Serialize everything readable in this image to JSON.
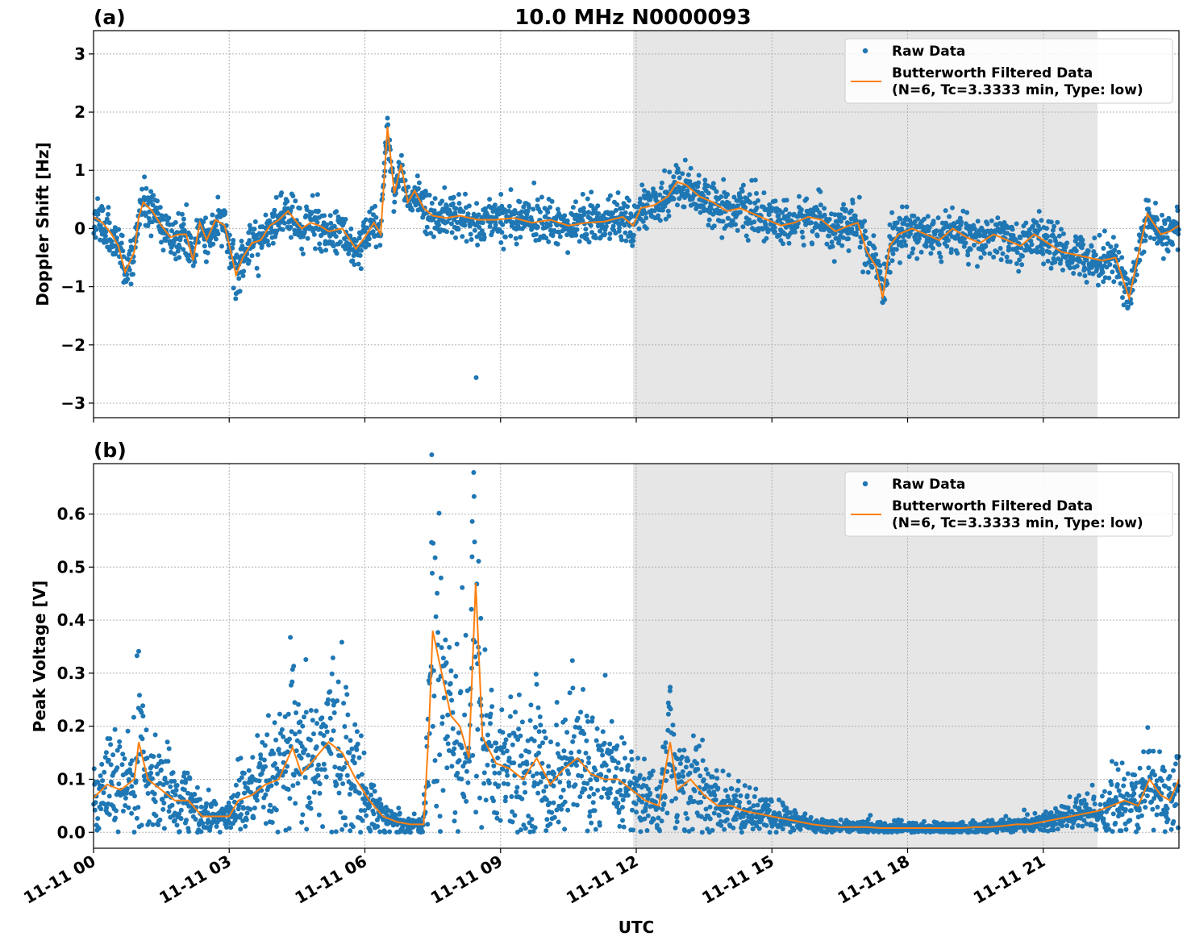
{
  "figure": {
    "title": "10.0 MHz N0000093",
    "xlabel": "UTC",
    "x_ticks": [
      "11-11 00",
      "11-11 03",
      "11-11 06",
      "11-11 09",
      "11-11 12",
      "11-11 15",
      "11-11 18",
      "11-11 21"
    ]
  },
  "colors": {
    "raw": "#1f77b4",
    "filtered": "#ff7f0e",
    "night_shade": "#e6e6e6",
    "grid": "#b0b0b0"
  },
  "legend": {
    "raw_label": "Raw Data",
    "filtered_label_line1": "Butterworth Filtered Data",
    "filtered_label_line2": "(N=6, Tc=3.3333 min, Type: low)",
    "placement": "top-right"
  },
  "chart_data": [
    {
      "type": "scatter",
      "panel": "(a)",
      "ylabel": "Doppler Shift [Hz]",
      "xlim_hours": [
        0,
        24
      ],
      "ylim": [
        -3.25,
        3.4
      ],
      "y_ticks": [
        "3",
        "2",
        "1",
        "0",
        "−1",
        "−2",
        "−3"
      ],
      "y_tick_values": [
        3,
        2,
        1,
        0,
        -1,
        -2,
        -3
      ],
      "grid": true,
      "shaded_region_hours": [
        11.93,
        22.2
      ],
      "filtered_series_hours": [
        0,
        0.2,
        0.4,
        0.55,
        0.7,
        0.9,
        1.0,
        1.1,
        1.3,
        1.5,
        1.7,
        1.9,
        2.05,
        2.2,
        2.35,
        2.5,
        2.7,
        2.9,
        3.05,
        3.15,
        3.3,
        3.5,
        3.7,
        3.9,
        4.1,
        4.3,
        4.6,
        4.8,
        5.0,
        5.2,
        5.5,
        5.8,
        6.0,
        6.2,
        6.35,
        6.5,
        6.65,
        6.8,
        6.95,
        7.1,
        7.3,
        7.5,
        7.8,
        8.1,
        8.5,
        8.9,
        9.3,
        9.7,
        10.1,
        10.5,
        10.9,
        11.3,
        11.7,
        11.93,
        12.1,
        12.4,
        12.7,
        12.9,
        13.1,
        13.4,
        13.7,
        14.0,
        14.3,
        14.6,
        14.9,
        15.2,
        15.5,
        15.8,
        16.1,
        16.4,
        16.7,
        16.9,
        17.1,
        17.3,
        17.45,
        17.6,
        17.8,
        18.1,
        18.4,
        18.7,
        19.0,
        19.3,
        19.6,
        19.9,
        20.2,
        20.5,
        20.8,
        21.1,
        21.4,
        21.7,
        22.0,
        22.3,
        22.6,
        22.9,
        23.1,
        23.3,
        23.6,
        23.8,
        24.0
      ],
      "filtered_series_values": [
        0.2,
        0.1,
        -0.1,
        -0.3,
        -0.75,
        -0.4,
        0.2,
        0.45,
        0.3,
        0.05,
        -0.15,
        -0.1,
        -0.1,
        -0.55,
        0.1,
        -0.2,
        0.15,
        0.05,
        -0.45,
        -0.8,
        -0.5,
        -0.25,
        -0.2,
        0.05,
        0.15,
        0.3,
        0.0,
        0.1,
        0.05,
        -0.05,
        0.0,
        -0.35,
        -0.15,
        0.1,
        -0.1,
        1.75,
        0.6,
        1.1,
        0.45,
        0.65,
        0.35,
        0.22,
        0.18,
        0.22,
        0.15,
        0.15,
        0.18,
        0.1,
        0.15,
        0.05,
        0.1,
        0.12,
        0.2,
        0.05,
        0.35,
        0.4,
        0.55,
        0.8,
        0.75,
        0.55,
        0.45,
        0.3,
        0.35,
        0.25,
        0.15,
        0.05,
        0.1,
        0.2,
        0.15,
        -0.05,
        0.05,
        0.1,
        -0.4,
        -0.65,
        -1.2,
        -0.3,
        -0.1,
        0.0,
        -0.1,
        -0.2,
        0.0,
        -0.15,
        -0.25,
        -0.1,
        -0.2,
        -0.3,
        -0.1,
        -0.25,
        -0.4,
        -0.45,
        -0.5,
        -0.55,
        -0.5,
        -1.2,
        -0.45,
        0.25,
        -0.1,
        -0.05,
        0.05
      ]
    },
    {
      "type": "scatter",
      "panel": "(b)",
      "ylabel": "Peak Voltage [V]",
      "xlim_hours": [
        0,
        24
      ],
      "ylim": [
        -0.03,
        0.695
      ],
      "y_ticks": [
        "0.6",
        "0.5",
        "0.4",
        "0.3",
        "0.2",
        "0.1",
        "0.0"
      ],
      "y_tick_values": [
        0.6,
        0.5,
        0.4,
        0.3,
        0.2,
        0.1,
        0.0
      ],
      "grid": true,
      "shaded_region_hours": [
        11.93,
        22.2
      ],
      "filtered_series_hours": [
        0,
        0.3,
        0.6,
        0.9,
        1.0,
        1.2,
        1.5,
        1.8,
        2.1,
        2.4,
        2.7,
        3.0,
        3.2,
        3.5,
        3.8,
        4.1,
        4.4,
        4.6,
        4.9,
        5.2,
        5.5,
        5.8,
        6.1,
        6.4,
        6.7,
        7.0,
        7.3,
        7.42,
        7.5,
        7.7,
        7.9,
        8.1,
        8.3,
        8.45,
        8.6,
        8.9,
        9.2,
        9.5,
        9.8,
        10.1,
        10.4,
        10.7,
        11.0,
        11.3,
        11.6,
        11.9,
        12.2,
        12.5,
        12.75,
        12.9,
        13.2,
        13.5,
        13.8,
        14.1,
        14.4,
        14.7,
        15.0,
        15.3,
        15.6,
        15.9,
        16.2,
        16.5,
        16.8,
        17.1,
        17.4,
        17.7,
        18.0,
        18.3,
        18.6,
        18.9,
        19.2,
        19.5,
        19.8,
        20.1,
        20.4,
        20.7,
        21.0,
        21.3,
        21.6,
        21.9,
        22.2,
        22.5,
        22.8,
        23.1,
        23.35,
        23.6,
        23.8,
        24.0
      ],
      "filtered_series_values": [
        0.065,
        0.09,
        0.08,
        0.1,
        0.17,
        0.1,
        0.08,
        0.06,
        0.06,
        0.03,
        0.03,
        0.03,
        0.06,
        0.07,
        0.09,
        0.1,
        0.16,
        0.11,
        0.14,
        0.17,
        0.15,
        0.1,
        0.06,
        0.03,
        0.02,
        0.015,
        0.015,
        0.2,
        0.38,
        0.3,
        0.22,
        0.2,
        0.14,
        0.47,
        0.18,
        0.13,
        0.12,
        0.1,
        0.14,
        0.09,
        0.12,
        0.14,
        0.11,
        0.1,
        0.1,
        0.08,
        0.06,
        0.05,
        0.17,
        0.08,
        0.1,
        0.07,
        0.05,
        0.05,
        0.04,
        0.035,
        0.03,
        0.025,
        0.02,
        0.015,
        0.012,
        0.01,
        0.01,
        0.01,
        0.008,
        0.008,
        0.008,
        0.008,
        0.008,
        0.008,
        0.008,
        0.01,
        0.01,
        0.012,
        0.015,
        0.015,
        0.02,
        0.025,
        0.03,
        0.035,
        0.04,
        0.05,
        0.06,
        0.05,
        0.1,
        0.07,
        0.06,
        0.1
      ]
    }
  ]
}
